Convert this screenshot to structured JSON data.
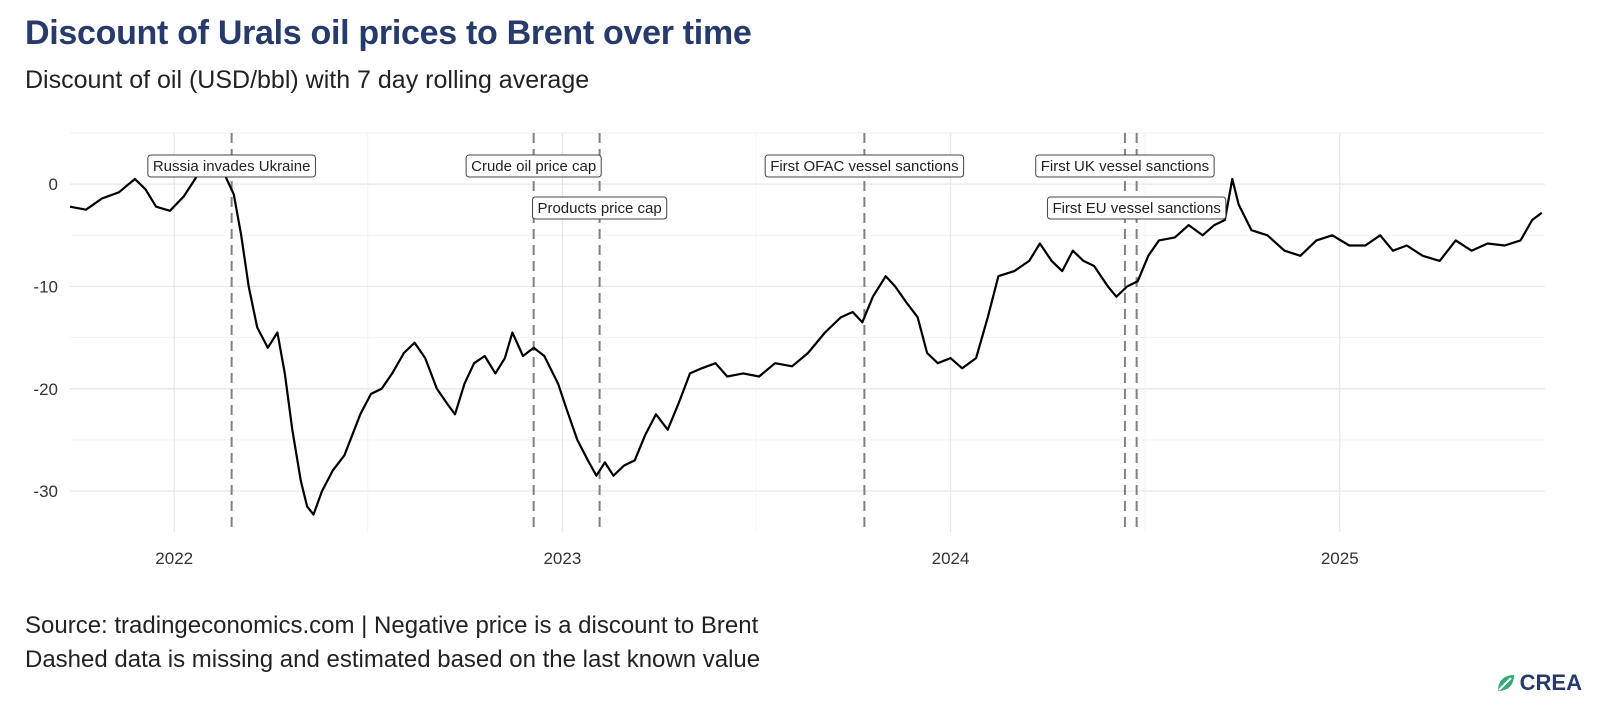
{
  "header": {
    "title": "Discount of Urals oil prices to Brent over time",
    "subtitle": "Discount of oil (USD/bbl) with 7 day rolling average"
  },
  "footer": {
    "source": "Source: tradingeconomics.com | Negative price is a discount to Brent",
    "note": "Dashed data is missing and estimated based on the last known value",
    "logo": "CREA"
  },
  "chart_data": {
    "type": "line",
    "x_axis_type": "date",
    "xlim": [
      "2021-09-25",
      "2025-07-13"
    ],
    "ylim": [
      -34,
      5
    ],
    "y_ticks": [
      0,
      -10,
      -20,
      -30
    ],
    "x_ticks": [
      {
        "date": "2022-01-01",
        "label": "2022"
      },
      {
        "date": "2023-01-01",
        "label": "2023"
      },
      {
        "date": "2024-01-01",
        "label": "2024"
      },
      {
        "date": "2025-01-01",
        "label": "2025"
      }
    ],
    "grid": true,
    "legend": "none",
    "line_color": "#000000",
    "event_line_color": "#808080",
    "series": [
      {
        "points": [
          [
            "2021-09-25",
            -2.2
          ],
          [
            "2021-10-10",
            -2.5
          ],
          [
            "2021-10-25",
            -1.4
          ],
          [
            "2021-11-10",
            -0.8
          ],
          [
            "2021-11-25",
            0.5
          ],
          [
            "2021-12-05",
            -0.5
          ],
          [
            "2021-12-15",
            -2.2
          ],
          [
            "2021-12-28",
            -2.6
          ],
          [
            "2022-01-10",
            -1.2
          ],
          [
            "2022-01-25",
            1.2
          ],
          [
            "2022-02-08",
            2.5
          ],
          [
            "2022-02-18",
            0.8
          ],
          [
            "2022-02-26",
            -1.0
          ],
          [
            "2022-03-05",
            -5.0
          ],
          [
            "2022-03-12",
            -10.0
          ],
          [
            "2022-03-20",
            -14.0
          ],
          [
            "2022-03-30",
            -16.0
          ],
          [
            "2022-04-08",
            -14.5
          ],
          [
            "2022-04-15",
            -18.5
          ],
          [
            "2022-04-22",
            -24.0
          ],
          [
            "2022-04-30",
            -29.0
          ],
          [
            "2022-05-06",
            -31.5
          ],
          [
            "2022-05-12",
            -32.3
          ],
          [
            "2022-05-20",
            -30.0
          ],
          [
            "2022-05-30",
            -28.0
          ],
          [
            "2022-06-10",
            -26.5
          ],
          [
            "2022-06-25",
            -22.5
          ],
          [
            "2022-07-05",
            -20.5
          ],
          [
            "2022-07-15",
            -20.0
          ],
          [
            "2022-07-25",
            -18.5
          ],
          [
            "2022-08-05",
            -16.5
          ],
          [
            "2022-08-15",
            -15.5
          ],
          [
            "2022-08-25",
            -17.0
          ],
          [
            "2022-09-05",
            -20.0
          ],
          [
            "2022-09-15",
            -21.5
          ],
          [
            "2022-09-22",
            -22.5
          ],
          [
            "2022-10-01",
            -19.5
          ],
          [
            "2022-10-10",
            -17.5
          ],
          [
            "2022-10-20",
            -16.8
          ],
          [
            "2022-10-30",
            -18.5
          ],
          [
            "2022-11-08",
            -17.0
          ],
          [
            "2022-11-15",
            -14.5
          ],
          [
            "2022-11-25",
            -16.8
          ],
          [
            "2022-12-05",
            -16.0
          ],
          [
            "2022-12-15",
            -16.8
          ],
          [
            "2022-12-28",
            -19.5
          ],
          [
            "2023-01-05",
            -22.0
          ],
          [
            "2023-01-15",
            -25.0
          ],
          [
            "2023-01-25",
            -27.0
          ],
          [
            "2023-02-02",
            -28.5
          ],
          [
            "2023-02-10",
            -27.2
          ],
          [
            "2023-02-18",
            -28.5
          ],
          [
            "2023-02-28",
            -27.5
          ],
          [
            "2023-03-10",
            -27.0
          ],
          [
            "2023-03-20",
            -24.5
          ],
          [
            "2023-03-30",
            -22.5
          ],
          [
            "2023-04-10",
            -24.0
          ],
          [
            "2023-04-20",
            -21.5
          ],
          [
            "2023-05-01",
            -18.5
          ],
          [
            "2023-05-12",
            -18.0
          ],
          [
            "2023-05-25",
            -17.5
          ],
          [
            "2023-06-05",
            -18.8
          ],
          [
            "2023-06-20",
            -18.5
          ],
          [
            "2023-07-05",
            -18.8
          ],
          [
            "2023-07-20",
            -17.5
          ],
          [
            "2023-08-05",
            -17.8
          ],
          [
            "2023-08-20",
            -16.5
          ],
          [
            "2023-09-05",
            -14.5
          ],
          [
            "2023-09-20",
            -13.0
          ],
          [
            "2023-10-01",
            -12.5
          ],
          [
            "2023-10-10",
            -13.5
          ],
          [
            "2023-10-20",
            -11.0
          ],
          [
            "2023-11-01",
            -9.0
          ],
          [
            "2023-11-10",
            -10.0
          ],
          [
            "2023-11-20",
            -11.5
          ],
          [
            "2023-12-01",
            -13.0
          ],
          [
            "2023-12-10",
            -16.5
          ],
          [
            "2023-12-20",
            -17.5
          ],
          [
            "2024-01-01",
            -17.0
          ],
          [
            "2024-01-12",
            -18.0
          ],
          [
            "2024-01-25",
            -17.0
          ],
          [
            "2024-02-05",
            -13.0
          ],
          [
            "2024-02-15",
            -9.0
          ],
          [
            "2024-03-01",
            -8.5
          ],
          [
            "2024-03-15",
            -7.5
          ],
          [
            "2024-03-25",
            -5.8
          ],
          [
            "2024-04-05",
            -7.5
          ],
          [
            "2024-04-15",
            -8.5
          ],
          [
            "2024-04-25",
            -6.5
          ],
          [
            "2024-05-05",
            -7.5
          ],
          [
            "2024-05-15",
            -8.0
          ],
          [
            "2024-05-28",
            -10.0
          ],
          [
            "2024-06-05",
            -11.0
          ],
          [
            "2024-06-15",
            -10.0
          ],
          [
            "2024-06-25",
            -9.5
          ],
          [
            "2024-07-05",
            -7.0
          ],
          [
            "2024-07-15",
            -5.5
          ],
          [
            "2024-07-30",
            -5.2
          ],
          [
            "2024-08-12",
            -4.0
          ],
          [
            "2024-08-25",
            -5.0
          ],
          [
            "2024-09-05",
            -4.0
          ],
          [
            "2024-09-15",
            -3.5
          ],
          [
            "2024-09-22",
            0.5
          ],
          [
            "2024-09-28",
            -2.0
          ],
          [
            "2024-10-10",
            -4.5
          ],
          [
            "2024-10-25",
            -5.0
          ],
          [
            "2024-11-10",
            -6.5
          ],
          [
            "2024-11-25",
            -7.0
          ],
          [
            "2024-12-10",
            -5.5
          ],
          [
            "2024-12-25",
            -5.0
          ],
          [
            "2025-01-10",
            -6.0
          ],
          [
            "2025-01-25",
            -6.0
          ],
          [
            "2025-02-08",
            -5.0
          ],
          [
            "2025-02-20",
            -6.5
          ],
          [
            "2025-03-05",
            -6.0
          ],
          [
            "2025-03-20",
            -7.0
          ],
          [
            "2025-04-05",
            -7.5
          ],
          [
            "2025-04-20",
            -5.5
          ],
          [
            "2025-05-05",
            -6.5
          ],
          [
            "2025-05-20",
            -5.8
          ],
          [
            "2025-06-05",
            -6.0
          ],
          [
            "2025-06-20",
            -5.5
          ],
          [
            "2025-07-01",
            -3.5
          ],
          [
            "2025-07-10",
            -2.8
          ]
        ]
      }
    ],
    "annotations": [
      {
        "label": "Russia invades Ukraine",
        "date": "2022-02-24",
        "row": 0
      },
      {
        "label": "Crude oil price cap",
        "date": "2022-12-05",
        "row": 0
      },
      {
        "label": "Products price cap",
        "date": "2023-02-05",
        "row": 1
      },
      {
        "label": "First OFAC vessel sanctions",
        "date": "2023-10-12",
        "row": 0
      },
      {
        "label": "First UK vessel sanctions",
        "date": "2024-06-13",
        "row": 0
      },
      {
        "label": "First EU vessel sanctions",
        "date": "2024-06-24",
        "row": 1
      }
    ]
  }
}
